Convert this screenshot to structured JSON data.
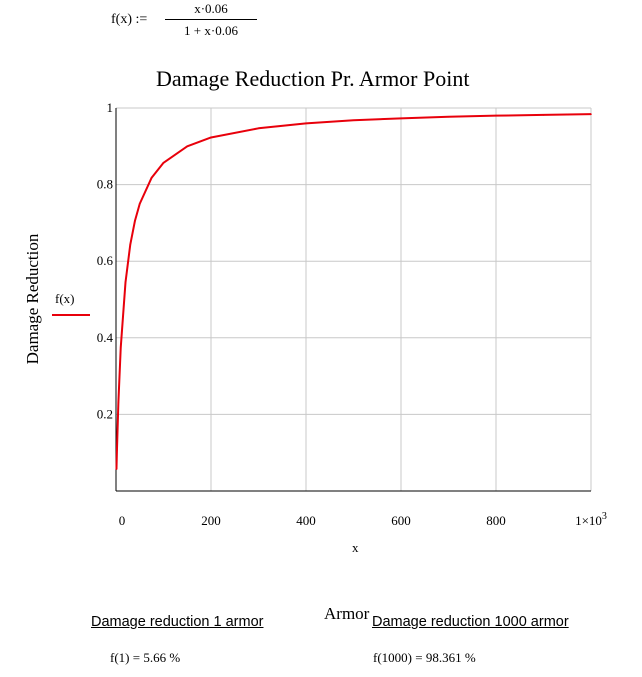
{
  "formula": {
    "lhs": "f(x) :=",
    "numerator": "x·0.06",
    "denominator": "1 + x·0.06"
  },
  "chart_data": {
    "type": "line",
    "title": "Damage Reduction Pr. Armor Point",
    "xlabel_var": "x",
    "xlabel": "Armor",
    "ylabel": "Damage Reduction",
    "legend": {
      "entry": "f(x)",
      "color": "#e8000b",
      "placement": "left"
    },
    "xlim": [
      0,
      1000
    ],
    "ylim": [
      0,
      1
    ],
    "x_ticks": [
      {
        "value": 0,
        "label": "0"
      },
      {
        "value": 200,
        "label": "200"
      },
      {
        "value": 400,
        "label": "400"
      },
      {
        "value": 600,
        "label": "600"
      },
      {
        "value": 800,
        "label": "800"
      },
      {
        "value": 1000,
        "label": "1×10"
      }
    ],
    "x_last_exponent": "3",
    "y_ticks": [
      {
        "value": 0.2,
        "label": "0.2"
      },
      {
        "value": 0.4,
        "label": "0.4"
      },
      {
        "value": 0.6,
        "label": "0.6"
      },
      {
        "value": 0.8,
        "label": "0.8"
      },
      {
        "value": 1,
        "label": "1"
      }
    ],
    "grid": true,
    "series": [
      {
        "name": "f(x)",
        "color": "#e8000b",
        "x": [
          1,
          2,
          5,
          10,
          20,
          30,
          40,
          50,
          75,
          100,
          150,
          200,
          300,
          400,
          500,
          600,
          700,
          800,
          900,
          1000
        ],
        "y": [
          0.057,
          0.107,
          0.231,
          0.375,
          0.545,
          0.643,
          0.706,
          0.75,
          0.818,
          0.857,
          0.9,
          0.923,
          0.947,
          0.96,
          0.968,
          0.973,
          0.977,
          0.98,
          0.982,
          0.984
        ]
      }
    ]
  },
  "results": {
    "left_heading": "Damage reduction 1 armor",
    "right_heading": "Damage reduction 1000 armor",
    "left_value": "f(1) = 5.66 %",
    "right_value": "f(1000) = 98.361 %"
  }
}
